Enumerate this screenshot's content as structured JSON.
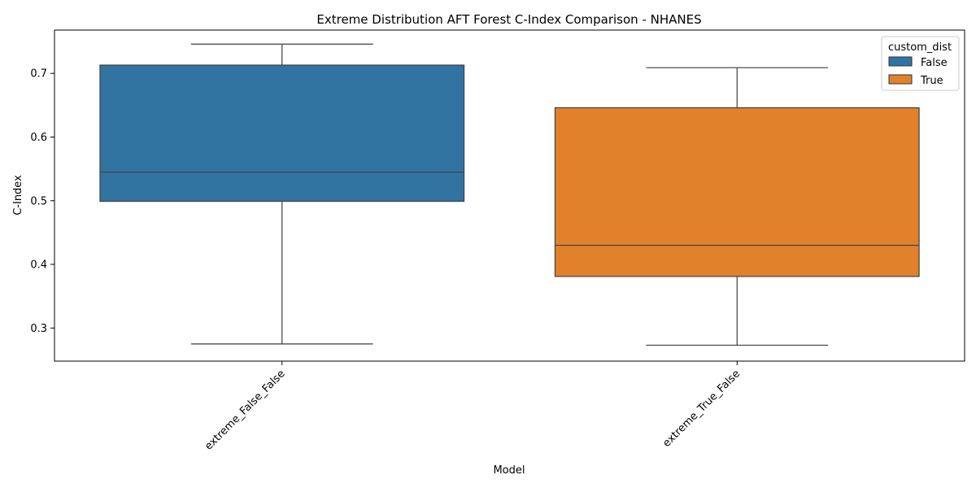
{
  "chart_data": {
    "type": "box",
    "title": "Extreme Distribution AFT Forest C-Index Comparison - NHANES",
    "xlabel": "Model",
    "ylabel": "C-Index",
    "ylim": [
      0.248,
      0.768
    ],
    "yticks": [
      0.3,
      0.4,
      0.5,
      0.6,
      0.7
    ],
    "ytick_labels": [
      "0.3",
      "0.4",
      "0.5",
      "0.6",
      "0.7"
    ],
    "grid": false,
    "legend": {
      "title": "custom_dist",
      "position": "top-right",
      "entries": [
        {
          "label": "False",
          "color": "#3274a1"
        },
        {
          "label": "True",
          "color": "#e1812c"
        }
      ]
    },
    "categories": [
      "extreme_False_False",
      "extreme_True_False"
    ],
    "boxes": [
      {
        "category": "extreme_False_False",
        "hue": "False",
        "color": "#3274a1",
        "whisker_low": 0.275,
        "q1": 0.499,
        "median": 0.545,
        "q3": 0.713,
        "whisker_high": 0.746
      },
      {
        "category": "extreme_True_False",
        "hue": "True",
        "color": "#e1812c",
        "whisker_low": 0.273,
        "q1": 0.381,
        "median": 0.43,
        "q3": 0.646,
        "whisker_high": 0.709
      }
    ]
  }
}
